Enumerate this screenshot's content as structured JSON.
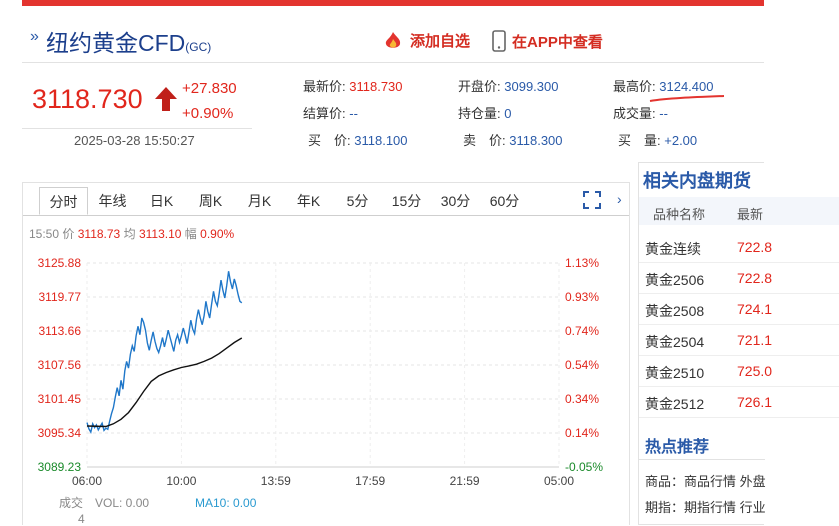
{
  "header": {
    "title": "纽约黄金CFD",
    "title_suffix": "(GC)",
    "add_favorite": "添加自选",
    "app_view": "在APP中查看"
  },
  "quote": {
    "price": "3118.730",
    "change": "+27.830",
    "change_pct": "+0.90%",
    "datetime": "2025-03-28 15:50:27"
  },
  "stats": {
    "latest_label": "最新价:",
    "latest": "3118.730",
    "open_label": "开盘价:",
    "open": "3099.300",
    "high_label": "最高价:",
    "high": "3124.400",
    "settle_label": "结算价:",
    "settle": "--",
    "oi_label": "持仓量:",
    "oi": "0",
    "volume_label": "成交量:",
    "volume": "--",
    "bid_label": "买　价:",
    "bid": "3118.100",
    "ask_label": "卖　价:",
    "ask": "3118.300",
    "bidvol_label": "买　量:",
    "bidvol": "+2.00"
  },
  "chart_tabs": [
    "分时",
    "年线",
    "日K",
    "周K",
    "月K",
    "年K",
    "5分",
    "15分",
    "30分",
    "60分"
  ],
  "info_line": {
    "time": "15:50",
    "price_label": "价",
    "price": "3118.73",
    "avg_label": "均",
    "avg": "3113.10",
    "amp_label": "幅",
    "amp": "0.90%"
  },
  "chart_data": {
    "type": "line",
    "y_left_ticks": [
      "3125.88",
      "3119.77",
      "3113.66",
      "3107.56",
      "3101.45",
      "3095.34",
      "3089.23"
    ],
    "y_right_ticks": [
      "1.13%",
      "0.93%",
      "0.74%",
      "0.54%",
      "0.34%",
      "0.14%",
      "-0.05%"
    ],
    "x_ticks": [
      "06:00",
      "10:00",
      "13:59",
      "17:59",
      "21:59",
      "05:00"
    ],
    "ylim": [
      3089.23,
      3125.88
    ],
    "series": [
      {
        "color": "#1f77c9",
        "x": [
          0,
          0.1,
          0.2,
          0.3,
          0.4,
          0.5,
          0.6,
          0.7,
          0.8,
          0.9,
          1.0,
          1.1,
          1.2,
          1.3,
          1.4,
          1.5,
          1.6,
          1.7,
          1.8,
          1.9,
          2.0,
          2.1,
          2.2,
          2.3,
          2.4,
          2.5,
          2.6,
          2.7,
          2.8,
          2.9,
          3.0,
          3.1,
          3.2,
          3.3,
          3.4,
          3.5,
          3.6,
          3.7,
          3.8,
          3.9,
          4.0,
          4.1,
          4.2,
          4.3,
          4.4,
          4.5,
          4.6,
          4.7,
          4.8,
          4.9,
          5.0,
          5.1,
          5.2,
          5.3,
          5.4,
          5.5,
          5.6,
          5.7,
          5.8,
          5.9,
          6.0,
          6.1,
          6.2,
          6.3,
          6.4,
          6.5,
          6.6,
          6.7,
          6.8,
          6.9,
          7.0,
          7.1,
          7.2,
          7.3,
          7.4,
          7.5,
          7.6,
          7.7,
          7.8,
          7.9,
          8.0,
          8.1,
          8.2,
          8.3,
          8.4,
          8.5,
          8.6,
          8.7,
          8.8,
          8.9,
          9.0,
          9.1,
          9.2,
          9.3,
          9.4,
          9.5,
          9.6,
          9.7,
          9.8,
          9.9
        ],
        "values": [
          3097.2,
          3096.1,
          3095.5,
          3097.0,
          3096.3,
          3096.8,
          3095.9,
          3096.5,
          3097.1,
          3095.8,
          3096.2,
          3096.0,
          3097.5,
          3098.8,
          3099.9,
          3101.8,
          3103.5,
          3102.0,
          3104.8,
          3103.2,
          3106.5,
          3108.2,
          3107.0,
          3109.5,
          3111.0,
          3110.0,
          3112.8,
          3114.5,
          3113.0,
          3116.0,
          3115.2,
          3113.8,
          3111.5,
          3110.2,
          3112.0,
          3113.5,
          3111.8,
          3110.5,
          3109.8,
          3111.0,
          3112.5,
          3110.8,
          3112.2,
          3113.8,
          3112.5,
          3111.2,
          3110.0,
          3112.0,
          3113.0,
          3111.6,
          3112.8,
          3114.2,
          3112.9,
          3111.4,
          3113.5,
          3115.6,
          3114.0,
          3113.2,
          3115.8,
          3117.5,
          3116.0,
          3114.8,
          3116.4,
          3119.0,
          3117.2,
          3116.0,
          3118.5,
          3120.8,
          3119.0,
          3118.2,
          3120.4,
          3122.8,
          3121.0,
          3119.6,
          3121.8,
          3124.4,
          3122.5,
          3121.2,
          3123.0,
          3121.8,
          3120.3,
          3119.0,
          3118.73,
          null,
          null,
          null,
          null,
          null,
          null,
          null,
          null,
          null,
          null,
          null,
          null,
          null,
          null,
          null,
          null,
          null
        ]
      },
      {
        "color": "#111111",
        "x": [
          0,
          1.0,
          1.4,
          1.8,
          2.2,
          2.6,
          3.0,
          3.4,
          3.8,
          4.2,
          4.6,
          5.0,
          5.4,
          5.8,
          6.2,
          6.6,
          7.0,
          7.4,
          7.8,
          8.2
        ],
        "values": [
          3096.6,
          3096.5,
          3097.0,
          3097.8,
          3099.0,
          3100.8,
          3102.8,
          3104.6,
          3105.6,
          3106.2,
          3106.7,
          3107.1,
          3107.4,
          3107.7,
          3108.2,
          3108.8,
          3109.6,
          3110.6,
          3111.6,
          3112.4
        ]
      }
    ],
    "bottom_labels": {
      "vol_title": "成交",
      "vol_count": "4",
      "vol": "VOL: 0.00",
      "ma10": "MA10: 0.00"
    }
  },
  "right_panel": {
    "title": "相关内盘期货",
    "head_name": "品种名称",
    "head_price": "最新",
    "rows": [
      {
        "name": "黄金连续",
        "price": "722.8"
      },
      {
        "name": "黄金2506",
        "price": "722.8"
      },
      {
        "name": "黄金2508",
        "price": "724.1"
      },
      {
        "name": "黄金2504",
        "price": "721.1"
      },
      {
        "name": "黄金2510",
        "price": "725.0"
      },
      {
        "name": "黄金2512",
        "price": "726.1"
      }
    ],
    "hot_title": "热点推荐",
    "hot_items": [
      "商品：商品行情 外盘",
      "期指：期指行情 行业"
    ]
  },
  "colors": {
    "accent_red": "#e1261c",
    "link_blue": "#2a5aa8"
  }
}
